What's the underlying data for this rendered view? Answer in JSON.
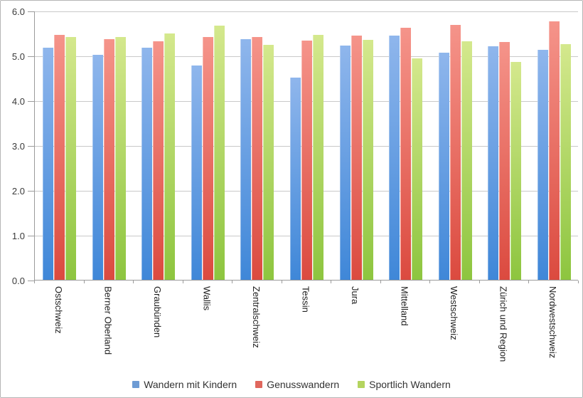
{
  "chart_data": {
    "type": "bar",
    "title": "",
    "xlabel": "",
    "ylabel": "",
    "ylim": [
      0,
      6
    ],
    "ytick_step": 1,
    "ytick_labels": [
      "6.0",
      "5.0",
      "4.0",
      "3.0",
      "2.0",
      "1.0",
      "0.0"
    ],
    "grid": true,
    "legend_position": "bottom",
    "categories": [
      "Ostschweiz",
      "Berner Oberland",
      "Graubünden",
      "Wallis",
      "Zentralschweiz",
      "Tessin",
      "Jura",
      "Mittelland",
      "Westschweiz",
      "Zürich und Region",
      "Nordwestschweiz"
    ],
    "series": [
      {
        "name": "Wandern mit Kindern",
        "color_top": "#8fb6ec",
        "color_bottom": "#3f87d8",
        "legend_color": "#6d9bd4",
        "values": [
          5.18,
          5.02,
          5.17,
          4.78,
          5.37,
          4.51,
          5.22,
          5.45,
          5.06,
          5.21,
          5.12
        ]
      },
      {
        "name": "Genusswandern",
        "color_top": "#f5948a",
        "color_bottom": "#db4a3f",
        "legend_color": "#e0675d",
        "values": [
          5.46,
          5.36,
          5.32,
          5.41,
          5.42,
          5.33,
          5.45,
          5.62,
          5.69,
          5.3,
          5.76
        ]
      },
      {
        "name": "Sportlich Wandern",
        "color_top": "#d4e88d",
        "color_bottom": "#8dc53f",
        "legend_color": "#b4d45f",
        "values": [
          5.41,
          5.42,
          5.5,
          5.66,
          5.24,
          5.46,
          5.35,
          4.94,
          5.31,
          4.85,
          5.25
        ]
      }
    ],
    "axis_color": "#9b9b9b",
    "gridline_color": "#c9c9c9"
  }
}
